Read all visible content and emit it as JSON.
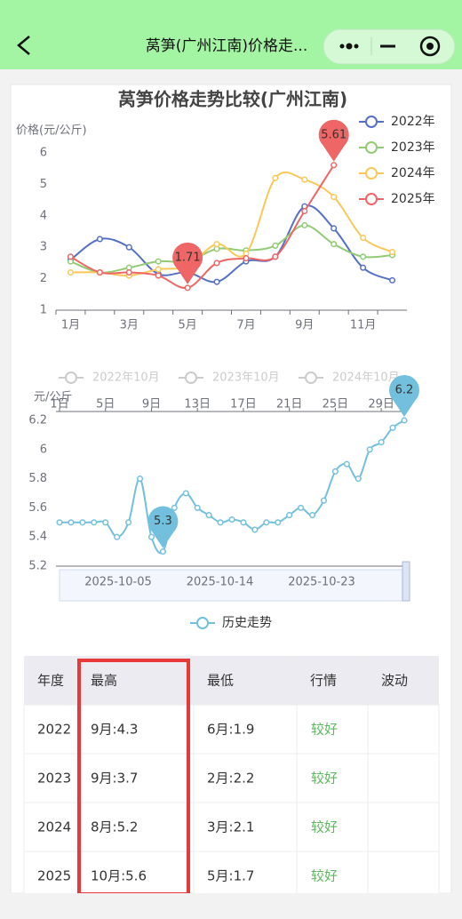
{
  "nav": {
    "title": "莴笋(广州江南)价格走..."
  },
  "chart_data": [
    {
      "type": "line",
      "title": "莴笋价格走势比较(广州江南)",
      "y_label": "价格(元/公斤)",
      "categories": [
        "1月",
        null,
        "3月",
        null,
        "5月",
        null,
        "7月",
        null,
        "9月",
        null,
        "11月",
        null
      ],
      "ylim": [
        1,
        6
      ],
      "yticks": [
        1,
        2,
        3,
        4,
        5,
        6
      ],
      "legend": "top-right",
      "smooth": true,
      "series": [
        {
          "name": "2022年",
          "color": "#5470c6",
          "values": [
            2.6,
            3.26,
            3.0,
            2.15,
            2.2,
            1.9,
            2.55,
            2.7,
            4.3,
            3.6,
            2.35,
            1.95
          ]
        },
        {
          "name": "2023年",
          "color": "#91cc75",
          "values": [
            2.55,
            2.2,
            2.35,
            2.55,
            2.55,
            2.95,
            2.9,
            3.05,
            3.7,
            3.1,
            2.7,
            2.75
          ]
        },
        {
          "name": "2024年",
          "color": "#fac858",
          "values": [
            2.2,
            2.2,
            2.1,
            2.3,
            2.4,
            3.1,
            2.8,
            5.2,
            5.15,
            4.6,
            3.3,
            2.85
          ]
        },
        {
          "name": "2025年",
          "color": "#ee6666",
          "values": [
            2.7,
            2.2,
            2.2,
            2.1,
            1.71,
            2.5,
            2.65,
            2.7,
            4.15,
            5.61,
            null,
            null
          ],
          "mark_points": [
            "max",
            "min"
          ]
        }
      ]
    },
    {
      "type": "line",
      "y_label": "元/公斤",
      "smooth": true,
      "inactive_legend": [
        "2022年10月",
        "2023年10月",
        "2024年10月"
      ],
      "categories": [
        "1日",
        null,
        null,
        null,
        "5日",
        null,
        null,
        null,
        "9日",
        null,
        null,
        null,
        "13日",
        null,
        null,
        null,
        "17日",
        null,
        null,
        null,
        "21日",
        null,
        null,
        null,
        "25日",
        null,
        null,
        null,
        "29日",
        null,
        null
      ],
      "ylim": [
        5.2,
        6.2
      ],
      "yticks": [
        5.2,
        5.4,
        5.6,
        5.8,
        6,
        6.2
      ],
      "legend": "bottom",
      "zoom_labels": [
        "2025-10-05",
        "2025-10-14",
        "2025-10-23"
      ],
      "series": [
        {
          "name": "历史走势",
          "color": "#73c0de",
          "mark_points": [
            "min",
            "max"
          ],
          "values": [
            5.5,
            5.5,
            5.5,
            5.5,
            5.5,
            5.4,
            5.5,
            5.8,
            5.4,
            5.3,
            5.6,
            5.7,
            5.6,
            5.55,
            5.5,
            5.52,
            5.5,
            5.45,
            5.5,
            5.5,
            5.55,
            5.6,
            5.55,
            5.65,
            5.85,
            5.9,
            5.8,
            6.0,
            6.05,
            6.15,
            6.2
          ]
        }
      ]
    }
  ],
  "table": {
    "header": [
      "年度",
      "最高",
      "最低",
      "行情",
      "波动"
    ],
    "rows": [
      [
        "2022",
        "9月:4.3",
        "6月:1.9",
        "较好"
      ],
      [
        "2023",
        "9月:3.7",
        "2月:2.2",
        "较好"
      ],
      [
        "2024",
        "8月:5.2",
        "3月:2.1",
        "较好"
      ],
      [
        "2025",
        "10月:5.6",
        "5月:1.7",
        "较好"
      ]
    ]
  }
}
